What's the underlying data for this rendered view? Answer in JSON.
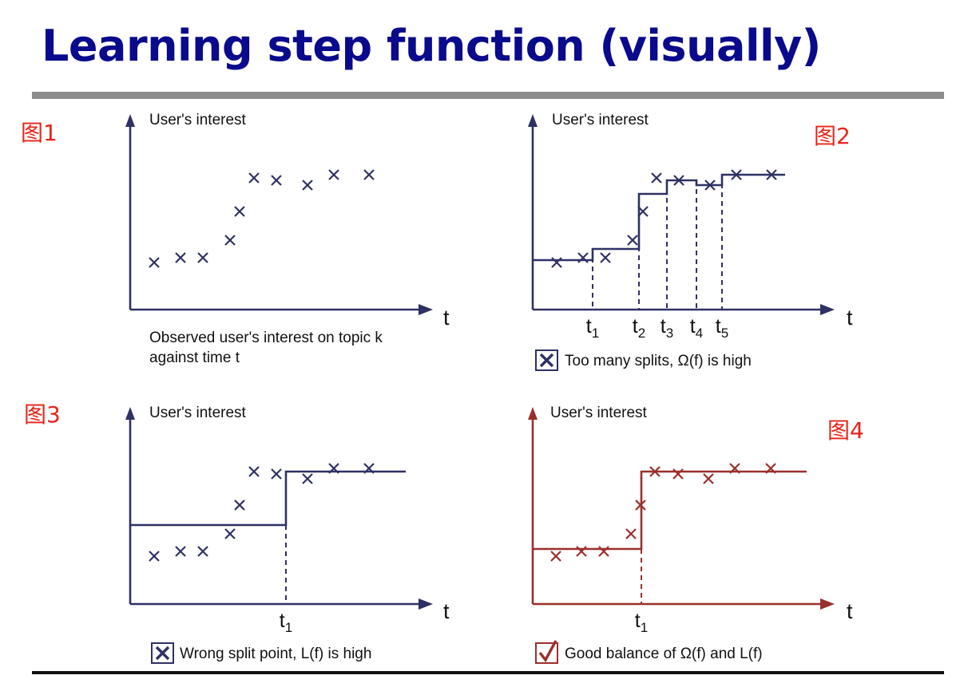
{
  "title": "Learning step function (visually)",
  "panels": [
    {
      "label": "图1",
      "ylabel": "User's interest",
      "xlabel": "t",
      "caption_lines": [
        "Observed user's interest on topic k",
        "against time t"
      ],
      "ticks": [],
      "mark": "",
      "color": "#2e3164"
    },
    {
      "label": "图2",
      "ylabel": "User's interest",
      "xlabel": "t",
      "caption_lines": [
        "Too many splits, Ω(f) is high"
      ],
      "ticks": [
        {
          "base": "t",
          "sub": "1"
        },
        {
          "base": "t",
          "sub": "2"
        },
        {
          "base": "t",
          "sub": "3"
        },
        {
          "base": "t",
          "sub": "4"
        },
        {
          "base": "t",
          "sub": "5"
        }
      ],
      "mark": "cross",
      "color": "#2e3164"
    },
    {
      "label": "图3",
      "ylabel": "User's interest",
      "xlabel": "t",
      "caption_lines": [
        "Wrong split point, L(f) is high"
      ],
      "ticks": [
        {
          "base": "t",
          "sub": "1"
        }
      ],
      "mark": "cross",
      "color": "#2e3164"
    },
    {
      "label": "图4",
      "ylabel": "User's interest",
      "xlabel": "t",
      "caption_lines": [
        "Good balance of Ω(f) and L(f)"
      ],
      "ticks": [
        {
          "base": "t",
          "sub": "1"
        }
      ],
      "mark": "check",
      "color": "#9b2f2b"
    }
  ]
}
